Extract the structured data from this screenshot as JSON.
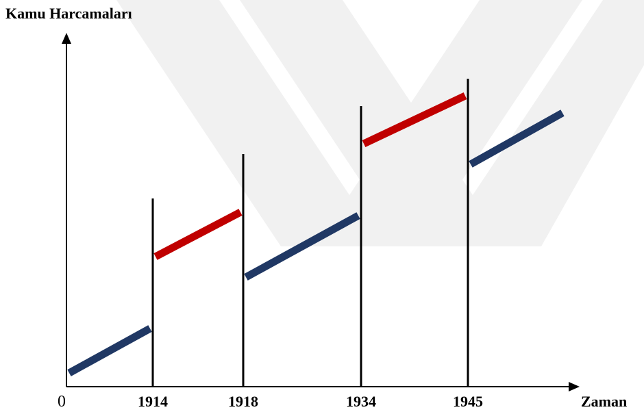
{
  "chart_data": {
    "type": "line",
    "title": "",
    "ylabel": "Kamu Harcamaları",
    "xlabel": "Zaman",
    "origin_label": "0",
    "x_ticks": [
      1914,
      1918,
      1934,
      1945
    ],
    "x_tick_labels": [
      "1914",
      "1918",
      "1934",
      "1945"
    ],
    "xlim": [
      1910,
      1950
    ],
    "ylim": [
      0,
      100
    ],
    "grid": false,
    "legend": "none",
    "segment_colors": {
      "blue": "#203864",
      "red": "#c00000"
    },
    "series": [
      {
        "color": "blue",
        "x": [
          1910,
          1914
        ],
        "y": [
          4,
          17
        ]
      },
      {
        "color": "red",
        "x": [
          1914,
          1918
        ],
        "y": [
          38,
          51
        ]
      },
      {
        "color": "blue",
        "x": [
          1918,
          1934
        ],
        "y": [
          32,
          50
        ]
      },
      {
        "color": "red",
        "x": [
          1934,
          1945
        ],
        "y": [
          71,
          85
        ]
      },
      {
        "color": "blue",
        "x": [
          1945,
          1950
        ],
        "y": [
          65,
          80
        ]
      }
    ],
    "period_markers": [
      {
        "x": 1914,
        "top": 55
      },
      {
        "x": 1918,
        "top": 68
      },
      {
        "x": 1934,
        "top": 82
      },
      {
        "x": 1945,
        "top": 90
      }
    ]
  }
}
